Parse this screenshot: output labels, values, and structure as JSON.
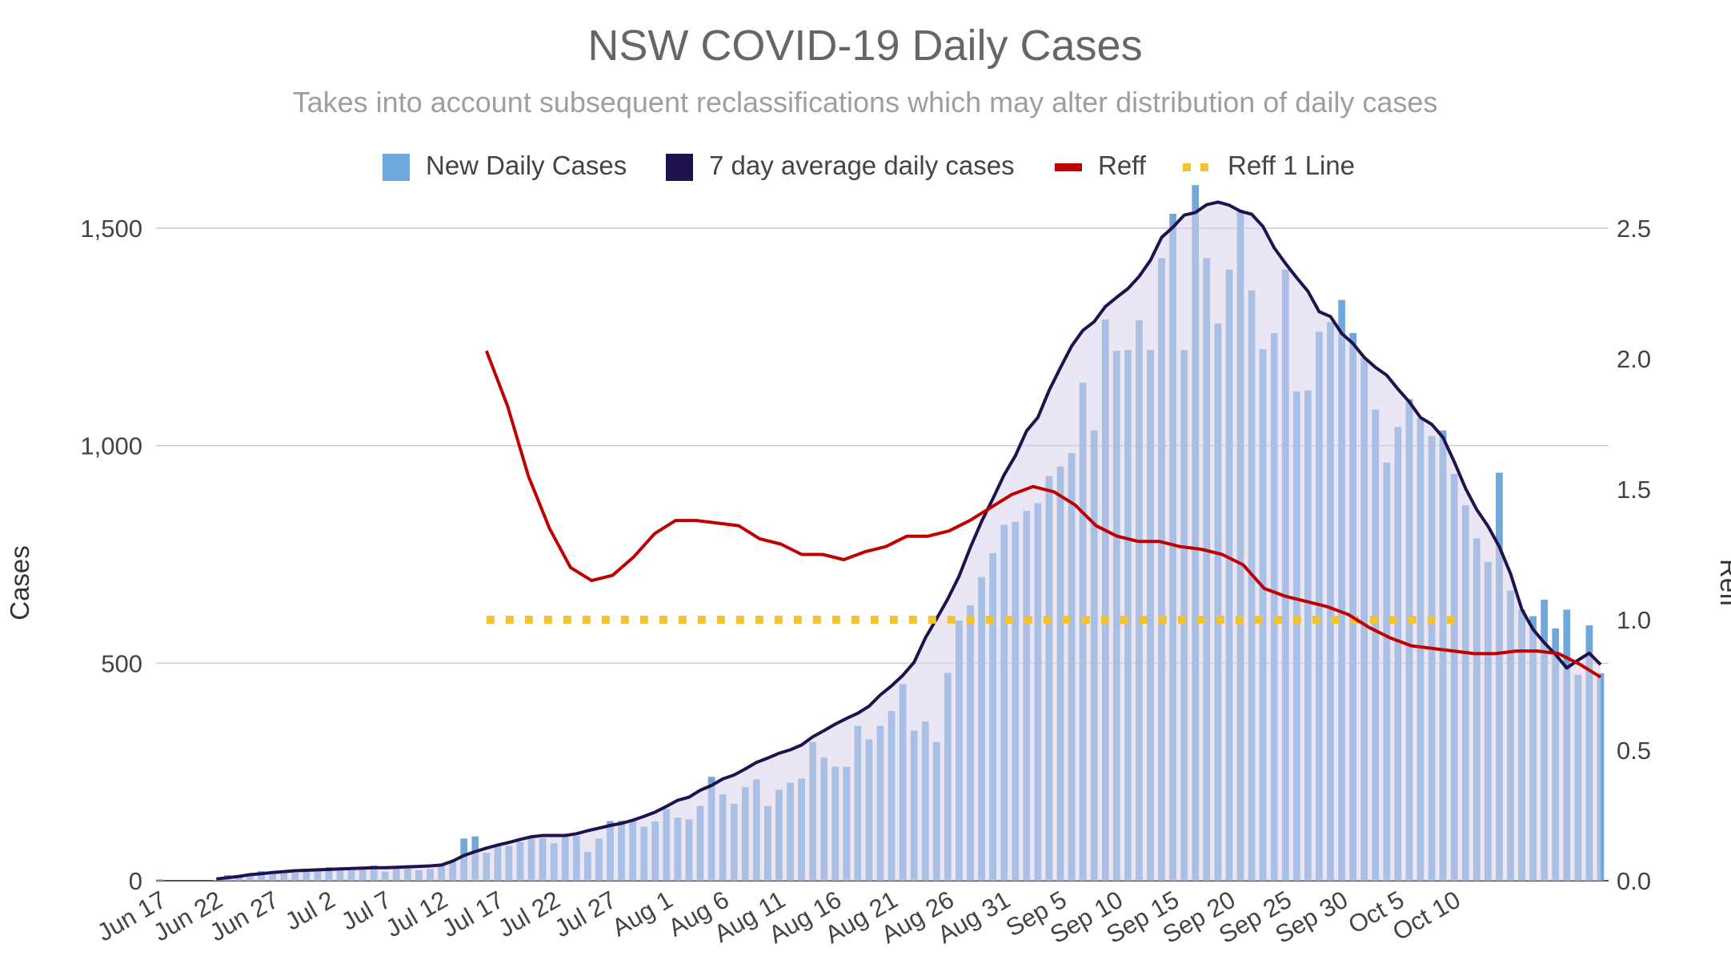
{
  "chart_data": {
    "type": "bar",
    "title": "NSW COVID-19 Daily Cases",
    "subtitle": "Takes into account subsequent reclassifications which may alter distribution of daily cases",
    "ylabel_left": "Cases",
    "ylabel_right": "Reff",
    "ylim_left": [
      0,
      1500
    ],
    "ylim_right": [
      0,
      2.5
    ],
    "yticks_left": [
      "0",
      "500",
      "1,000",
      "1,500"
    ],
    "yticks_right": [
      "0.0",
      "0.5",
      "1.0",
      "1.5",
      "2.0",
      "2.5"
    ],
    "grid": true,
    "legend_position": "top",
    "colors": {
      "bars": "#6fa8dc",
      "avg": "#20124d",
      "reff": "#c00000",
      "reff1": "#f1c232",
      "fill": "#d9d2e9"
    },
    "x_tick_labels": [
      "Jun 17",
      "Jun 22",
      "Jun 27",
      "Jul 2",
      "Jul 7",
      "Jul 12",
      "Jul 17",
      "Jul 22",
      "Jul 27",
      "Aug 1",
      "Aug 6",
      "Aug 11",
      "Aug 16",
      "Aug 21",
      "Aug 26",
      "Aug 31",
      "Sep 5",
      "Sep 10",
      "Sep 15",
      "Sep 20",
      "Sep 25",
      "Sep 30",
      "Oct 5",
      "Oct 10"
    ],
    "x_tick_every_days": 5,
    "series": [
      {
        "name": "New Daily Cases",
        "type": "bar",
        "start": "Jun 17",
        "values": [
          3,
          0,
          0,
          0,
          0,
          2,
          13,
          10,
          16,
          22,
          19,
          20,
          18,
          22,
          24,
          31,
          29,
          24,
          27,
          35,
          21,
          30,
          29,
          24,
          27,
          38,
          44,
          97,
          102,
          64,
          82,
          80,
          89,
          97,
          98,
          86,
          105,
          103,
          66,
          97,
          137,
          138,
          141,
          124,
          136,
          165,
          145,
          141,
          172,
          239,
          199,
          177,
          215,
          233,
          172,
          209,
          225,
          235,
          319,
          283,
          262,
          262,
          356,
          325,
          356,
          390,
          452,
          345,
          366,
          319,
          478,
          598,
          633,
          698,
          753,
          818,
          825,
          850,
          868,
          930,
          952,
          983,
          1145,
          1035,
          1290,
          1218,
          1220,
          1288,
          1220,
          1431,
          1533,
          1220,
          1599,
          1431,
          1281,
          1405,
          1542,
          1357,
          1222,
          1259,
          1405,
          1125,
          1127,
          1262,
          1284,
          1335,
          1259,
          1201,
          1083,
          961,
          1043,
          1107,
          1063,
          1022,
          1035,
          935,
          863,
          787,
          733,
          938,
          667,
          623,
          608,
          646,
          580,
          623,
          473,
          587,
          477
        ]
      },
      {
        "name": "7 day average daily cases",
        "type": "line",
        "start": "Jun 22",
        "values": [
          4,
          7,
          10,
          14,
          16,
          19,
          21,
          23,
          24,
          25,
          26,
          27,
          28,
          29,
          30,
          30,
          31,
          32,
          33,
          34,
          36,
          45,
          58,
          67,
          75,
          82,
          88,
          95,
          101,
          104,
          104,
          104,
          108,
          115,
          121,
          127,
          132,
          139,
          148,
          158,
          171,
          185,
          192,
          208,
          219,
          234,
          243,
          257,
          272,
          282,
          293,
          301,
          312,
          331,
          345,
          360,
          373,
          385,
          401,
          427,
          448,
          472,
          502,
          558,
          602,
          648,
          700,
          766,
          826,
          878,
          933,
          977,
          1034,
          1065,
          1127,
          1179,
          1229,
          1265,
          1285,
          1320,
          1341,
          1361,
          1389,
          1426,
          1479,
          1502,
          1530,
          1536,
          1554,
          1560,
          1553,
          1539,
          1532,
          1504,
          1455,
          1419,
          1386,
          1355,
          1308,
          1297,
          1258,
          1235,
          1203,
          1180,
          1162,
          1130,
          1101,
          1065,
          1049,
          1019,
          963,
          902,
          853,
          815,
          768,
          706,
          624,
          578,
          547,
          520,
          489,
          507,
          523,
          497
        ]
      },
      {
        "name": "Reff",
        "type": "line",
        "axis": "right",
        "start": "Jul 16",
        "values": [
          2.03,
          1.82,
          1.55,
          1.35,
          1.2,
          1.15,
          1.17,
          1.24,
          1.33,
          1.38,
          1.38,
          1.37,
          1.36,
          1.31,
          1.29,
          1.25,
          1.25,
          1.23,
          1.26,
          1.28,
          1.32,
          1.32,
          1.34,
          1.38,
          1.43,
          1.48,
          1.51,
          1.49,
          1.44,
          1.36,
          1.32,
          1.3,
          1.3,
          1.28,
          1.27,
          1.25,
          1.21,
          1.12,
          1.09,
          1.07,
          1.05,
          1.02,
          0.97,
          0.93,
          0.9,
          0.89,
          0.88,
          0.87,
          0.87,
          0.88,
          0.88,
          0.87,
          0.83,
          0.78
        ]
      },
      {
        "name": "Reff 1 Line",
        "type": "line",
        "axis": "right",
        "style": "dotted",
        "start": "Jul 16",
        "end": "Oct 10",
        "value": 1.0
      }
    ]
  }
}
